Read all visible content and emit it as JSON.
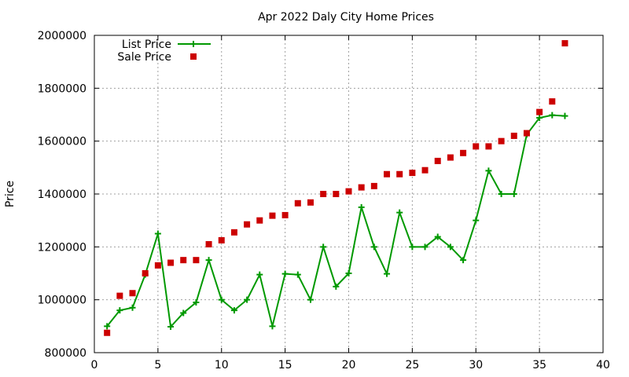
{
  "chart_data": {
    "type": "line",
    "title": "Apr 2022 Daly City Home Prices",
    "xlabel": "",
    "ylabel": "Price",
    "xlim": [
      0,
      40
    ],
    "ylim": [
      800000,
      2000000
    ],
    "xticks": [
      0,
      5,
      10,
      15,
      20,
      25,
      30,
      35,
      40
    ],
    "yticks": [
      800000,
      1000000,
      1200000,
      1400000,
      1600000,
      1800000,
      2000000
    ],
    "grid": true,
    "legend_position": "top-left",
    "series": [
      {
        "name": "List Price",
        "style": "line-with-plus-markers",
        "color": "#009900",
        "x": [
          1,
          2,
          3,
          4,
          5,
          6,
          7,
          8,
          9,
          10,
          11,
          12,
          13,
          14,
          15,
          16,
          17,
          18,
          19,
          20,
          21,
          22,
          23,
          24,
          25,
          26,
          27,
          28,
          29,
          30,
          31,
          32,
          33,
          34,
          35,
          36,
          37
        ],
        "values": [
          900000,
          960000,
          970000,
          1095000,
          1250000,
          898000,
          950000,
          990000,
          1150000,
          1000000,
          960000,
          1000000,
          1095000,
          900000,
          1098000,
          1095000,
          1000000,
          1200000,
          1050000,
          1100000,
          1350000,
          1200000,
          1098000,
          1330000,
          1200000,
          1200000,
          1238000,
          1200000,
          1150000,
          1300000,
          1488000,
          1400000,
          1400000,
          1625000,
          1688000,
          1698000,
          1695000
        ]
      },
      {
        "name": "Sale Price",
        "style": "square-markers",
        "color": "#cc0000",
        "x": [
          1,
          2,
          3,
          4,
          5,
          6,
          7,
          8,
          9,
          10,
          11,
          12,
          13,
          14,
          15,
          16,
          17,
          18,
          19,
          20,
          21,
          22,
          23,
          24,
          25,
          26,
          27,
          28,
          29,
          30,
          31,
          32,
          33,
          34,
          35,
          36,
          37
        ],
        "values": [
          875000,
          1015000,
          1025000,
          1100000,
          1130000,
          1140000,
          1150000,
          1150000,
          1210000,
          1225000,
          1255000,
          1285000,
          1300000,
          1318000,
          1320000,
          1365000,
          1368000,
          1400000,
          1400000,
          1410000,
          1425000,
          1430000,
          1475000,
          1475000,
          1480000,
          1490000,
          1525000,
          1538000,
          1555000,
          1580000,
          1580000,
          1600000,
          1620000,
          1630000,
          1710000,
          1750000,
          1970000
        ]
      }
    ]
  }
}
